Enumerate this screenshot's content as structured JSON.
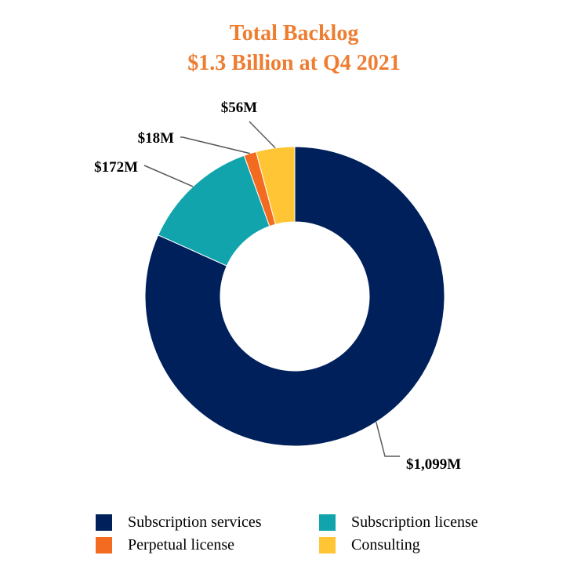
{
  "chart_data": {
    "type": "pie",
    "title": "Total Backlog",
    "subtitle": "$1.3 Billion at Q4 2021",
    "donut": true,
    "legend_position": "bottom",
    "slices": [
      {
        "label": "Subscription services",
        "value": 1099,
        "data_label": "$1,099M",
        "color": "#00205B"
      },
      {
        "label": "Subscription license",
        "value": 172,
        "data_label": "$172M",
        "color": "#11A4AC"
      },
      {
        "label": "Perpetual license",
        "value": 18,
        "data_label": "$18M",
        "color": "#F26B21"
      },
      {
        "label": "Consulting",
        "value": 56,
        "data_label": "$56M",
        "color": "#FFC535"
      }
    ]
  },
  "colors": {
    "title": "#EE7D31"
  }
}
